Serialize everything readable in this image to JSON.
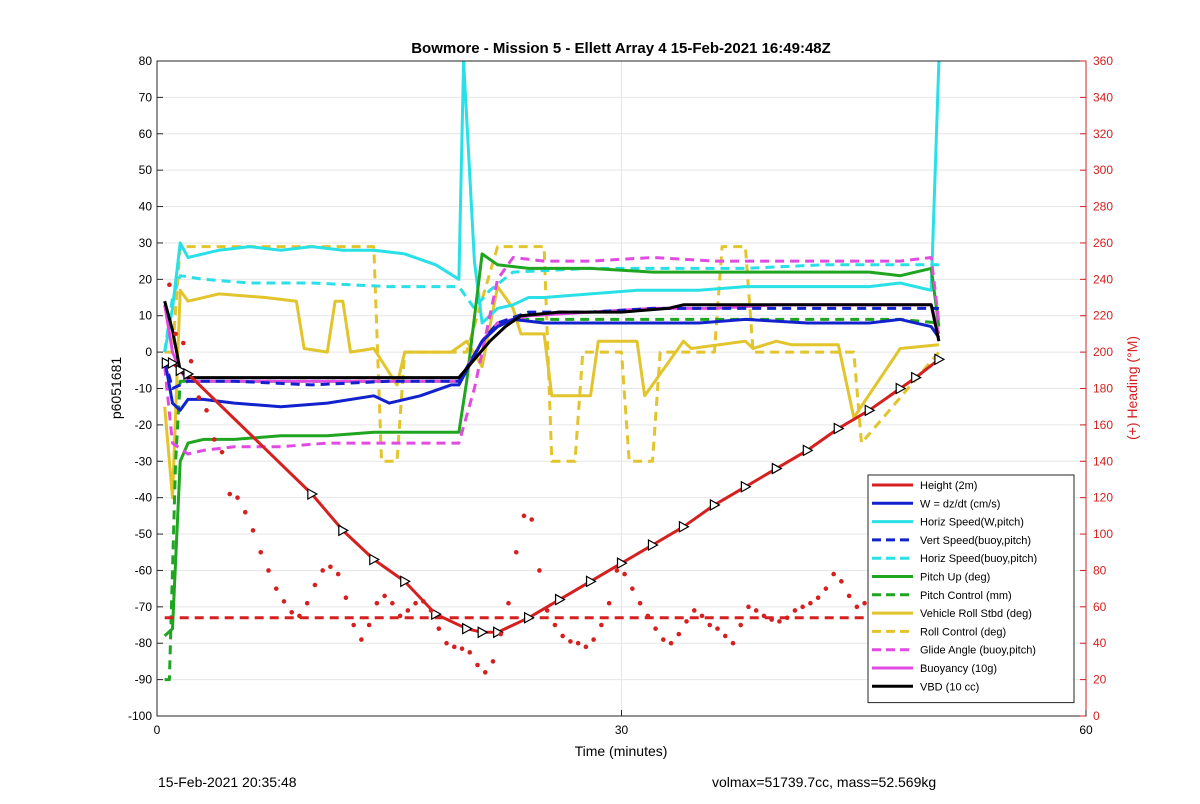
{
  "chart_data": {
    "type": "line",
    "title": "Bowmore - Mission 5 - Ellett Array 4 15-Feb-2021 16:49:48Z",
    "xlabel": "Time (minutes)",
    "ylabel": "p6051681",
    "y2label": "(+) Heading (°M)",
    "xlim": [
      0,
      60
    ],
    "ylim": [
      -100,
      80
    ],
    "y2lim": [
      0,
      360
    ],
    "xticks": [
      0,
      30,
      60
    ],
    "yticks": [
      -100,
      -90,
      -80,
      -70,
      -60,
      -50,
      -40,
      -30,
      -20,
      -10,
      0,
      10,
      20,
      30,
      40,
      50,
      60,
      70,
      80
    ],
    "y2ticks": [
      0,
      20,
      40,
      60,
      80,
      100,
      120,
      140,
      160,
      180,
      200,
      220,
      240,
      260,
      280,
      300,
      320,
      340,
      360
    ],
    "grid": true,
    "legend_position": "bottom-right",
    "series": [
      {
        "name": "Height (2m)",
        "color": "#d62020",
        "style": "solid",
        "marker": "triangle",
        "x": [
          0.6,
          1.0,
          1.5,
          2.0,
          10.0,
          12.0,
          14.0,
          16.0,
          18.0,
          20.0,
          21.0,
          22.0,
          24.0,
          26.0,
          28.0,
          30.0,
          32.0,
          34.0,
          36.0,
          38.0,
          40.0,
          42.0,
          44.0,
          46.0,
          48.0,
          49.0,
          50.5
        ],
        "y": [
          -3,
          -3,
          -5,
          -6,
          -39,
          -49,
          -57,
          -63,
          -72,
          -76,
          -77,
          -77,
          -73,
          -68,
          -63,
          -58,
          -53,
          -48,
          -42,
          -37,
          -32,
          -27,
          -21,
          -16,
          -10,
          -7,
          -2
        ]
      },
      {
        "name": "W = dz/dt (cm/s)",
        "color": "#1122cc",
        "style": "solid",
        "x": [
          0.5,
          1.0,
          1.5,
          2.0,
          3.0,
          5.0,
          8.0,
          11.0,
          14.0,
          15.0,
          17.0,
          19.0,
          19.5,
          20.0,
          21.0,
          22.0,
          23.0,
          25.0,
          28.0,
          31.0,
          35.0,
          38.0,
          42.0,
          46.0,
          48.0,
          50.0,
          50.5
        ],
        "y": [
          -2,
          -14,
          -16,
          -13,
          -13,
          -14,
          -15,
          -14,
          -12,
          -14,
          -12,
          -9,
          -9,
          -5,
          3,
          7,
          9,
          8,
          8,
          8,
          8,
          9,
          8,
          8,
          9,
          7,
          4
        ]
      },
      {
        "name": "Horiz Speed(W,pitch)",
        "color": "#29e0e6",
        "style": "solid",
        "x": [
          0.5,
          1.0,
          1.5,
          2.0,
          4.0,
          6.0,
          8.0,
          10.0,
          12.0,
          14.0,
          16.0,
          18.0,
          19.5,
          19.8,
          20.5,
          21.0,
          22.0,
          23.0,
          24.0,
          25.0,
          28.0,
          31.0,
          35.0,
          38.0,
          42.0,
          46.0,
          48.0,
          50.0,
          50.5
        ],
        "y": [
          0,
          12,
          30,
          26,
          28,
          29,
          28,
          29,
          28,
          28,
          27,
          24,
          20,
          80,
          25,
          8,
          12,
          13,
          15,
          15,
          16,
          17,
          17,
          18,
          18,
          18,
          19,
          17,
          80
        ]
      },
      {
        "name": "Vert Speed(buoy,pitch)",
        "color": "#1122cc",
        "style": "dashed",
        "x": [
          0.5,
          1.0,
          2.0,
          5.0,
          10.0,
          15.0,
          19.5,
          21.0,
          22.0,
          24.0,
          28.0,
          32.0,
          36.0,
          40.0,
          44.0,
          48.0,
          50.0,
          50.5
        ],
        "y": [
          -2,
          -10,
          -8,
          -8,
          -9,
          -8,
          -8,
          3,
          8,
          11,
          11,
          12,
          12,
          12,
          12,
          12,
          12,
          12
        ]
      },
      {
        "name": "Horiz Speed(buoy,pitch)",
        "color": "#29e0e6",
        "style": "dashed",
        "x": [
          0.5,
          1.0,
          1.5,
          3.0,
          6.0,
          10.0,
          15.0,
          19.5,
          20.5,
          21.5,
          23.0,
          28.0,
          33.0,
          38.0,
          43.0,
          48.0,
          50.5
        ],
        "y": [
          0,
          15,
          21,
          20,
          19,
          19,
          18,
          18,
          12,
          17,
          22,
          23,
          23,
          23,
          24,
          24,
          24
        ]
      },
      {
        "name": "Pitch Up (deg)",
        "color": "#1fa51f",
        "style": "solid",
        "x": [
          0.5,
          1.0,
          1.5,
          2.0,
          3.0,
          5.0,
          8.0,
          11.0,
          14.0,
          17.0,
          19.5,
          20.0,
          21.0,
          22.0,
          24.0,
          28.0,
          32.0,
          36.0,
          40.0,
          44.0,
          46.0,
          48.0,
          50.0,
          50.5
        ],
        "y": [
          -78,
          -76,
          -30,
          -25,
          -24,
          -24,
          -23,
          -23,
          -22,
          -22,
          -22,
          -8,
          27,
          24,
          23,
          23,
          22,
          22,
          22,
          22,
          22,
          21,
          23,
          7
        ]
      },
      {
        "name": "Pitch Control (mm)",
        "color": "#1fa51f",
        "style": "dashed",
        "x": [
          0.5,
          0.8,
          1.0,
          1.2,
          1.5,
          2.0,
          5.0,
          10.0,
          15.0,
          19.5,
          21.0,
          22.0,
          24.0,
          28.0,
          32.0,
          36.0,
          40.0,
          44.0,
          48.0,
          50.5
        ],
        "y": [
          -90,
          -90,
          -60,
          -30,
          -8,
          -8,
          -8,
          -8,
          -8,
          -8,
          3,
          8,
          9,
          9,
          9,
          9,
          9,
          9,
          9,
          8
        ]
      },
      {
        "name": "Vehicle Roll Stbd (deg)",
        "color": "#e2c42c",
        "style": "solid",
        "x": [
          0.5,
          1.0,
          1.5,
          2.0,
          4.0,
          7.0,
          9.0,
          9.5,
          11.0,
          11.5,
          12.0,
          12.5,
          14.0,
          15.5,
          16.0,
          19.0,
          20.0,
          21.0,
          22.0,
          23.0,
          23.5,
          25.0,
          25.5,
          28.0,
          28.5,
          31.0,
          31.5,
          34.0,
          34.5,
          38.0,
          38.5,
          40.0,
          41.0,
          44.0,
          45.0,
          48.0,
          50.5
        ],
        "y": [
          -15,
          -40,
          17,
          14,
          16,
          15,
          14,
          1,
          0,
          14,
          14,
          0,
          1,
          -9,
          0,
          0,
          3,
          -4,
          18,
          12,
          5,
          5,
          -12,
          -12,
          3,
          3,
          -12,
          3,
          1,
          3,
          1,
          3,
          2,
          2,
          -18,
          1,
          2
        ]
      },
      {
        "name": "Roll Control (deg)",
        "color": "#e2c42c",
        "style": "dashed",
        "x": [
          0.5,
          1.0,
          1.5,
          2.0,
          8.0,
          9.0,
          12.0,
          12.5,
          14.0,
          14.5,
          15.5,
          16.0,
          19.5,
          20.0,
          22.0,
          23.0,
          25.0,
          25.5,
          27.0,
          27.5,
          30.0,
          30.5,
          32.0,
          32.5,
          36.0,
          36.5,
          38.0,
          38.5,
          40.0,
          41.0,
          45.0,
          45.5,
          50.5
        ],
        "y": [
          0,
          0,
          29,
          29,
          29,
          29,
          29,
          29,
          29,
          -30,
          -30,
          0,
          0,
          0,
          29,
          29,
          29,
          -30,
          -30,
          0,
          0,
          -30,
          -30,
          0,
          0,
          29,
          29,
          0,
          0,
          0,
          0,
          -25,
          0
        ]
      },
      {
        "name": "Glide Angle (buoy,pitch)",
        "color": "#e14be1",
        "style": "dashed",
        "x": [
          0.5,
          1.0,
          2.0,
          3.0,
          5.0,
          8.0,
          11.0,
          14.0,
          17.0,
          19.5,
          20.5,
          22.0,
          23.0,
          25.0,
          28.0,
          32.0,
          36.0,
          40.0,
          44.0,
          48.0,
          50.0,
          50.5
        ],
        "y": [
          -4,
          -25,
          -28,
          -27,
          -26,
          -26,
          -25,
          -25,
          -25,
          -25,
          -10,
          20,
          26,
          25,
          25,
          26,
          25,
          25,
          25,
          25,
          26,
          8
        ]
      },
      {
        "name": "Buoyancy (10g)",
        "color": "#e14be1",
        "style": "solid",
        "x": [
          0.5,
          1.0,
          1.5,
          2.0,
          5.0,
          10.0,
          15.0,
          19.5,
          21.0,
          22.0,
          24.0,
          28.0,
          32.0,
          36.0,
          40.0,
          44.0,
          48.0,
          50.0,
          50.5
        ],
        "y": [
          13,
          0,
          -5,
          -8,
          -8,
          -8,
          -8,
          -8,
          3,
          8,
          10,
          11,
          12,
          12,
          13,
          13,
          13,
          13,
          5
        ]
      },
      {
        "name": "VBD (10 cc)",
        "color": "#000000",
        "style": "solid",
        "x": [
          0.5,
          1.0,
          1.5,
          2.0,
          5.0,
          10.0,
          15.0,
          19.5,
          20.5,
          21.5,
          22.5,
          23.5,
          26.0,
          30.0,
          33.0,
          34.0,
          37.0,
          40.0,
          44.0,
          48.0,
          50.0,
          50.5
        ],
        "y": [
          14,
          6,
          -5,
          -7,
          -7,
          -7,
          -7,
          -7,
          -2,
          3,
          7,
          10,
          11,
          11,
          12,
          13,
          13,
          13,
          13,
          13,
          13,
          3
        ]
      },
      {
        "name": "Heading",
        "color": "#d62020",
        "style": "dotted-markers",
        "axis": "right",
        "x": [
          0.8,
          1.2,
          1.7,
          2.2,
          2.7,
          3.2,
          3.7,
          4.2,
          4.7,
          5.2,
          5.7,
          6.2,
          6.7,
          7.2,
          7.7,
          8.2,
          8.7,
          9.2,
          9.7,
          10.2,
          10.7,
          11.2,
          11.7,
          12.2,
          12.7,
          13.2,
          13.7,
          14.2,
          14.7,
          15.2,
          15.7,
          16.2,
          16.7,
          17.2,
          17.7,
          18.2,
          18.7,
          19.2,
          19.7,
          20.2,
          20.7,
          21.2,
          21.7,
          22.2,
          22.7,
          23.2,
          23.7,
          24.2,
          24.7,
          25.2,
          25.7,
          26.2,
          26.7,
          27.2,
          27.7,
          28.2,
          28.7,
          29.2,
          29.7,
          30.2,
          30.7,
          31.2,
          31.7,
          32.2,
          32.7,
          33.2,
          33.7,
          34.2,
          34.7,
          35.2,
          35.7,
          36.2,
          36.7,
          37.2,
          37.7,
          38.2,
          38.7,
          39.2,
          39.7,
          40.2,
          40.7,
          41.2,
          41.7,
          42.2,
          42.7,
          43.2,
          43.7,
          44.2,
          44.7,
          45.2,
          45.7,
          46.2,
          46.7,
          47.2,
          47.7,
          48.2,
          48.7,
          49.2,
          49.7
        ],
        "y": [
          237,
          210,
          205,
          195,
          175,
          168,
          152,
          145,
          122,
          120,
          112,
          102,
          90,
          80,
          70,
          63,
          57,
          55,
          62,
          72,
          80,
          82,
          78,
          65,
          50,
          42,
          50,
          62,
          66,
          62,
          55,
          58,
          62,
          63,
          58,
          48,
          40,
          38,
          37,
          35,
          28,
          24,
          30,
          45,
          62,
          90,
          110,
          108,
          80,
          58,
          50,
          44,
          41,
          40,
          38,
          42,
          50,
          62,
          80,
          78,
          70,
          62,
          55,
          48,
          42,
          40,
          45,
          52,
          58,
          55,
          50,
          48,
          44,
          40,
          50,
          60,
          58,
          55,
          53,
          52,
          54,
          58,
          60,
          62,
          65,
          70,
          78,
          74,
          66,
          60,
          62,
          64,
          60,
          58,
          56,
          52,
          48,
          40,
          30
        ]
      },
      {
        "name": "",
        "color": "#d62020",
        "style": "dashed",
        "axis": "right",
        "x": [
          0.5,
          50.5
        ],
        "y": [
          54,
          54
        ]
      }
    ]
  },
  "footer": {
    "left": "15-Feb-2021 20:35:48",
    "right": "volmax=51739.7cc, mass=52.569kg"
  }
}
